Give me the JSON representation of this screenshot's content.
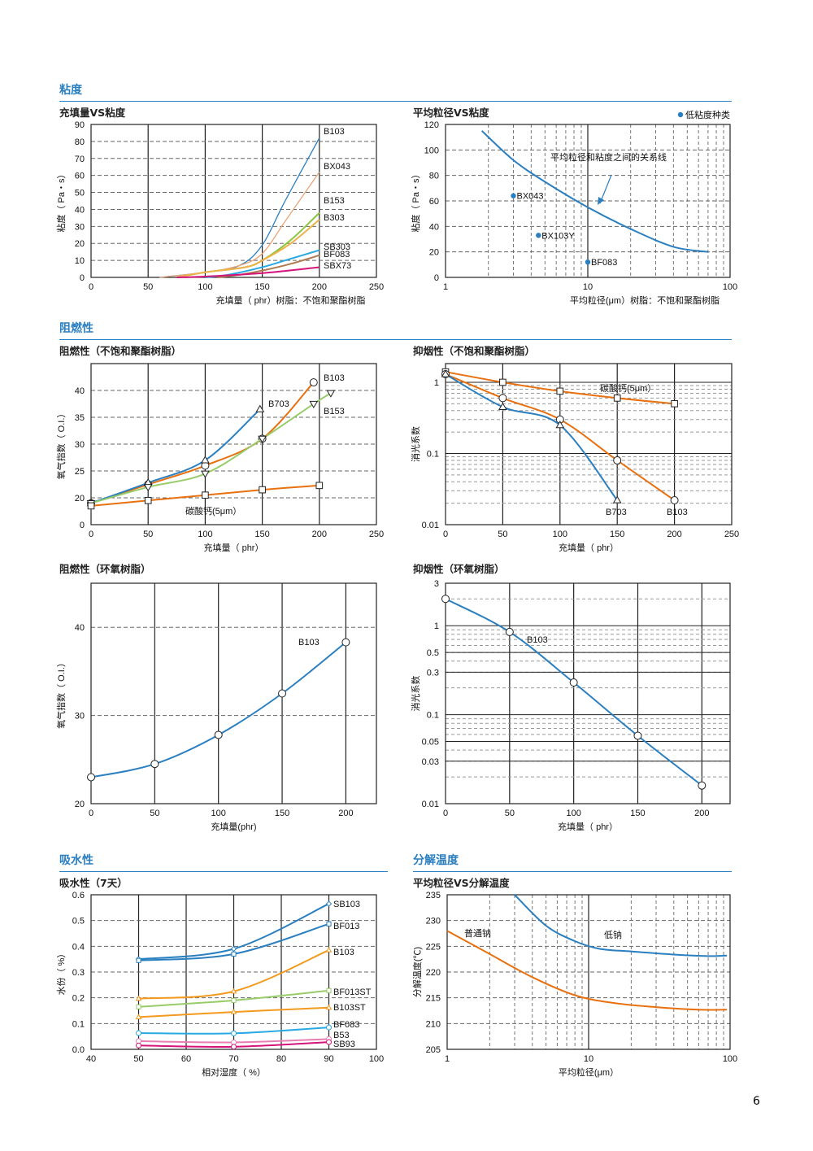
{
  "sections": {
    "viscosity": "粘度",
    "flame": "阻燃性",
    "water": "吸水性",
    "decomp": "分解温度"
  },
  "page_number": "6",
  "colors": {
    "accent": "#2a7fc0",
    "blue": "#2a7fc0",
    "orange": "#e8700f",
    "green": "#8cc63f",
    "pink": "#d4147a",
    "tan": "#e8a47a",
    "lightorange": "#f0b24a",
    "cyan": "#27a9e1",
    "brown": "#b07a50",
    "lightgreen": "#98cc6a",
    "lightpink": "#e77fb3"
  },
  "chart_data": [
    {
      "id": "c1",
      "title": "充填量VS粘度",
      "type": "line",
      "xlabel": "充填量（ phr）树脂：不饱和聚酯树脂",
      "ylabel": "粘度（ Pa・s）",
      "xlim": [
        0,
        250
      ],
      "ylim": [
        0,
        90
      ],
      "xticks": [
        0,
        50,
        100,
        150,
        200,
        250
      ],
      "yticks": [
        0,
        10,
        20,
        30,
        40,
        50,
        60,
        70,
        80,
        90
      ],
      "grid": true,
      "series": [
        {
          "name": "B103",
          "color": "#2a7fc0",
          "x": [
            60,
            100,
            130,
            150,
            170,
            200
          ],
          "y": [
            0,
            3,
            7,
            19,
            45,
            82
          ]
        },
        {
          "name": "BX043",
          "color": "#e8a47a",
          "x": [
            60,
            100,
            130,
            150,
            170,
            200
          ],
          "y": [
            0,
            3,
            7,
            14,
            33,
            62
          ]
        },
        {
          "name": "B153",
          "color": "#8cc63f",
          "x": [
            75,
            100,
            135,
            150,
            175,
            200
          ],
          "y": [
            0,
            3,
            6,
            10,
            22,
            38
          ]
        },
        {
          "name": "B303",
          "color": "#f0b24a",
          "x": [
            75,
            100,
            135,
            150,
            175,
            200
          ],
          "y": [
            0,
            3,
            6,
            10,
            20,
            34
          ]
        },
        {
          "name": "SB303",
          "color": "#27a9e1",
          "x": [
            100,
            120,
            150,
            175,
            200
          ],
          "y": [
            0,
            1.5,
            6,
            11,
            16
          ]
        },
        {
          "name": "BF083",
          "color": "#b07a50",
          "x": [
            110,
            130,
            150,
            175,
            200
          ],
          "y": [
            0,
            1.5,
            4,
            8,
            13
          ]
        },
        {
          "name": "SBX73",
          "color": "#d4147a",
          "x": [
            75,
            100,
            150,
            200
          ],
          "y": [
            0,
            0.5,
            2.5,
            6
          ]
        }
      ]
    },
    {
      "id": "c2",
      "title": "平均粒径VS粘度",
      "type": "line",
      "xlabel": "平均粒径(μm）树脂：不饱和聚酯树脂",
      "ylabel": "粘度（ Pa・s）",
      "xscale": "log",
      "xlim": [
        1,
        100
      ],
      "ylim": [
        0,
        120
      ],
      "xticks": [
        1,
        10,
        100
      ],
      "yticks": [
        0,
        20,
        40,
        60,
        80,
        100,
        120
      ],
      "grid": true,
      "legend": "低粘度种类",
      "legend_position": "top-right",
      "annotation": "平均粒径和粘度之间的关系线",
      "series": [
        {
          "name": "",
          "color": "#2a7fc0",
          "x": [
            1.8,
            3,
            5,
            10,
            20,
            40,
            70
          ],
          "y": [
            115,
            92,
            75,
            55,
            38,
            24,
            20
          ]
        }
      ],
      "points": [
        {
          "name": "BX043",
          "x": 3,
          "y": 64
        },
        {
          "name": "BX103Y",
          "x": 4.5,
          "y": 33
        },
        {
          "name": "BF083",
          "x": 10,
          "y": 12
        }
      ]
    },
    {
      "id": "c3",
      "title": "阻燃性（不饱和聚酯树脂）",
      "type": "line",
      "xlabel": "充填量（ phr）",
      "ylabel": "氧气指数（ O.I.）",
      "xlim": [
        0,
        250
      ],
      "ylim": [
        15,
        45
      ],
      "xticks": [
        0,
        50,
        100,
        150,
        200,
        250
      ],
      "yticks": [
        20,
        25,
        30,
        35,
        40
      ],
      "ybottom_label": "0",
      "grid": true,
      "annotation": "碳酸钙(5μm）",
      "series": [
        {
          "name": "B103",
          "color": "#e8700f",
          "marker": "circle",
          "x": [
            0,
            50,
            100,
            150,
            195
          ],
          "y": [
            19,
            22.5,
            26,
            31,
            41.5
          ]
        },
        {
          "name": "B703",
          "color": "#2a7fc0",
          "marker": "triangle",
          "x": [
            0,
            50,
            100,
            148
          ],
          "y": [
            19,
            22.8,
            27,
            36.5
          ]
        },
        {
          "name": "B153",
          "color": "#98cc6a",
          "marker": "tri-down",
          "x": [
            0,
            50,
            100,
            150,
            195,
            210
          ],
          "y": [
            19,
            22,
            24.5,
            31,
            37.5,
            39.5
          ]
        },
        {
          "name": "",
          "color": "#e8700f",
          "marker": "square",
          "x": [
            0,
            50,
            100,
            150,
            200
          ],
          "y": [
            18.5,
            19.5,
            20.5,
            21.5,
            22.3
          ]
        }
      ]
    },
    {
      "id": "c4",
      "title": "抑烟性（不饱和聚酯树脂）",
      "type": "line",
      "xlabel": "充填量（ phr）",
      "ylabel": "消光系数",
      "yscale": "log",
      "xlim": [
        0,
        250
      ],
      "ylim": [
        0.01,
        1.83
      ],
      "xticks": [
        0,
        50,
        100,
        150,
        200,
        250
      ],
      "yticks": [
        0.01,
        0.1,
        1
      ],
      "grid": true,
      "series": [
        {
          "name": "碳酸钙(5μm）",
          "color": "#e8700f",
          "marker": "square",
          "x": [
            0,
            50,
            100,
            150,
            200
          ],
          "y": [
            1.4,
            1.0,
            0.75,
            0.6,
            0.5
          ]
        },
        {
          "name": "B103",
          "color": "#e8700f",
          "marker": "circle",
          "x": [
            0,
            50,
            100,
            150,
            200
          ],
          "y": [
            1.3,
            0.6,
            0.3,
            0.08,
            0.022
          ]
        },
        {
          "name": "B703",
          "color": "#2a7fc0",
          "marker": "triangle",
          "x": [
            0,
            50,
            100,
            150
          ],
          "y": [
            1.3,
            0.45,
            0.25,
            0.022
          ]
        }
      ]
    },
    {
      "id": "c5",
      "title": "阻燃性（环氧树脂）",
      "type": "line",
      "xlabel": "充填量(phr)",
      "ylabel": "氧气指数（ O.I.）",
      "xlim": [
        0,
        224
      ],
      "ylim": [
        20,
        45
      ],
      "xticks": [
        0,
        50,
        100,
        150,
        200
      ],
      "yticks": [
        20,
        30,
        40
      ],
      "grid": true,
      "series": [
        {
          "name": "B103",
          "color": "#2a7fc0",
          "marker": "circle",
          "x": [
            0,
            50,
            100,
            150,
            200
          ],
          "y": [
            23,
            24.5,
            27.8,
            32.5,
            38.3
          ]
        }
      ]
    },
    {
      "id": "c6",
      "title": "抑烟性（环氧树脂）",
      "type": "line",
      "xlabel": "充填量（ phr）",
      "ylabel": "消光系数",
      "yscale": "log",
      "xlim": [
        0,
        222
      ],
      "ylim": [
        0.01,
        3
      ],
      "xticks": [
        0,
        50,
        100,
        150,
        200
      ],
      "yticks": [
        0.01,
        0.03,
        0.05,
        0.1,
        0.3,
        0.5,
        1,
        3
      ],
      "grid": true,
      "series": [
        {
          "name": "B103",
          "color": "#2a7fc0",
          "marker": "circle",
          "x": [
            0,
            50,
            100,
            150,
            200
          ],
          "y": [
            2,
            0.85,
            0.23,
            0.058,
            0.016
          ]
        }
      ]
    },
    {
      "id": "c7",
      "title": "吸水性（7天）",
      "type": "line",
      "xlabel": "相对湿度（ %）",
      "ylabel": "水份（ %）",
      "xlim": [
        40,
        100
      ],
      "ylim": [
        0,
        0.6
      ],
      "xticks": [
        40,
        50,
        60,
        70,
        80,
        90,
        100
      ],
      "yticks": [
        0,
        0.1,
        0.2,
        0.3,
        0.4,
        0.5,
        0.6
      ],
      "ytick_format": "0.0",
      "grid": true,
      "series": [
        {
          "name": "SB103",
          "color": "#2a7fc0",
          "marker": "diamond",
          "x": [
            50,
            70,
            90
          ],
          "y": [
            0.35,
            0.39,
            0.565
          ]
        },
        {
          "name": "BF013",
          "color": "#2a7fc0",
          "marker": "square",
          "x": [
            50,
            70,
            90
          ],
          "y": [
            0.345,
            0.37,
            0.487
          ]
        },
        {
          "name": "B103",
          "color": "#f39a1e",
          "marker": "triangle",
          "x": [
            50,
            70,
            90
          ],
          "y": [
            0.197,
            0.225,
            0.385
          ]
        },
        {
          "name": "BF013ST",
          "color": "#98cc6a",
          "marker": "square",
          "x": [
            50,
            70,
            90
          ],
          "y": [
            0.165,
            0.19,
            0.228
          ]
        },
        {
          "name": "B103ST",
          "color": "#f39a1e",
          "marker": "triangle",
          "x": [
            50,
            70,
            90
          ],
          "y": [
            0.125,
            0.145,
            0.162
          ]
        },
        {
          "name": "BF083",
          "color": "#27a9e1",
          "marker": "circle",
          "x": [
            50,
            70,
            90
          ],
          "y": [
            0.063,
            0.062,
            0.085
          ]
        },
        {
          "name": "B53",
          "color": "#e77fb3",
          "marker": "circle",
          "x": [
            50,
            70,
            90
          ],
          "y": [
            0.032,
            0.027,
            0.04
          ]
        },
        {
          "name": "SB93",
          "color": "#d4147a",
          "marker": "circle",
          "x": [
            50,
            70,
            90
          ],
          "y": [
            0.015,
            0.01,
            0.028
          ]
        }
      ]
    },
    {
      "id": "c8",
      "title": "平均粒径VS分解温度",
      "type": "line",
      "xlabel": "平均粒径(μm）",
      "ylabel": "分解温度(℃)",
      "xscale": "log",
      "xlim": [
        1,
        100
      ],
      "ylim": [
        205,
        235
      ],
      "xticks": [
        1,
        10,
        100
      ],
      "yticks": [
        205,
        210,
        215,
        220,
        225,
        230,
        235
      ],
      "grid": true,
      "series": [
        {
          "name": "普通钠",
          "color": "#e8700f",
          "x": [
            1,
            2,
            4,
            8,
            15,
            30,
            60,
            95
          ],
          "y": [
            228,
            223.5,
            219,
            215.5,
            214,
            213.2,
            212.7,
            212.7
          ]
        },
        {
          "name": "低钠",
          "color": "#2a7fc0",
          "x": [
            3,
            5,
            8,
            12,
            20,
            40,
            70,
            95
          ],
          "y": [
            235,
            229,
            226,
            224.5,
            224,
            223.4,
            223.1,
            223.2
          ]
        }
      ]
    }
  ]
}
